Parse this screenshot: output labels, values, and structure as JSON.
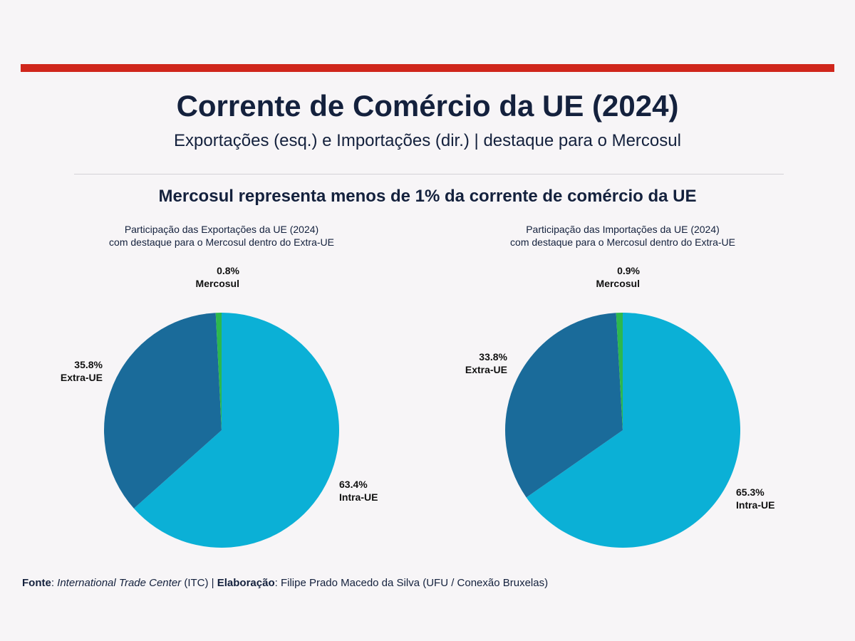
{
  "header": {
    "title": "Corrente de Comércio da UE (2024)",
    "subtitle": "Exportações (esq.) e Importações (dir.) | destaque para o Mercosul",
    "headline": "Mercosul representa menos de 1% da corrente de comércio da UE"
  },
  "colors": {
    "accent": "#d0261c",
    "intra": "#0bb0d6",
    "extra": "#1a6b9a",
    "mercosul": "#2db84d"
  },
  "chart_data": [
    {
      "type": "pie",
      "title": [
        "Participação das Exportações da UE (2024)",
        "com destaque para o Mercosul dentro do Extra-UE"
      ],
      "slices": [
        {
          "label": "Intra-UE",
          "value": 63.4,
          "text": "63.4%"
        },
        {
          "label": "Extra-UE",
          "value": 35.8,
          "text": "35.8%"
        },
        {
          "label": "Mercosul",
          "value": 0.8,
          "text": "0.8%"
        }
      ]
    },
    {
      "type": "pie",
      "title": [
        "Participação das Importações da UE (2024)",
        "com destaque para o Mercosul dentro do Extra-UE"
      ],
      "slices": [
        {
          "label": "Intra-UE",
          "value": 65.3,
          "text": "65.3%"
        },
        {
          "label": "Extra-UE",
          "value": 33.8,
          "text": "33.8%"
        },
        {
          "label": "Mercosul",
          "value": 0.9,
          "text": "0.9%"
        }
      ]
    }
  ],
  "footer": {
    "fonte_label": "Fonte",
    "fonte_value": "International Trade Center",
    "fonte_suffix": " (ITC) | ",
    "elab_label": "Elaboração",
    "elab_value": ": Filipe Prado Macedo da Silva (UFU / Conexão Bruxelas)"
  }
}
